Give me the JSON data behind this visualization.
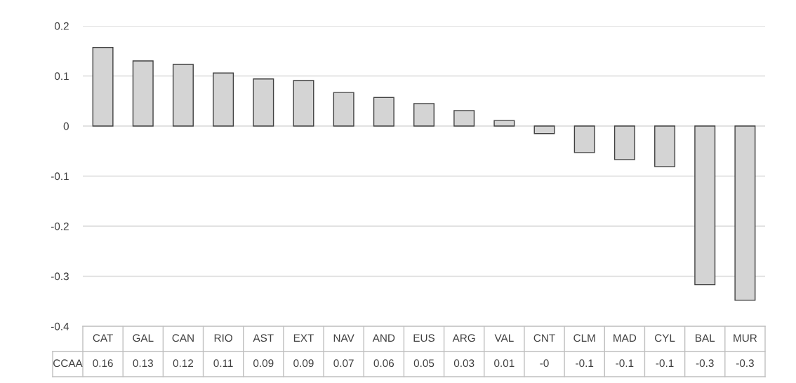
{
  "chart_data": {
    "type": "bar",
    "categories": [
      "CAT",
      "GAL",
      "CAN",
      "RIO",
      "AST",
      "EXT",
      "NAV",
      "AND",
      "EUS",
      "ARG",
      "VAL",
      "CNT",
      "CLM",
      "MAD",
      "CYL",
      "BAL",
      "MUR"
    ],
    "series": [
      {
        "name": "CCAA",
        "color": "#d4d4d4",
        "values": [
          0.157,
          0.13,
          0.123,
          0.106,
          0.094,
          0.091,
          0.067,
          0.057,
          0.045,
          0.031,
          0.011,
          -0.015,
          -0.053,
          -0.067,
          -0.081,
          -0.317,
          -0.348
        ],
        "value_labels": [
          "0.16",
          "0.13",
          "0.12",
          "0.11",
          "0.09",
          "0.09",
          "0.07",
          "0.06",
          "0.05",
          "0.03",
          "0.01",
          "-0",
          "-0.1",
          "-0.1",
          "-0.1",
          "-0.3",
          "-0.3"
        ]
      }
    ],
    "ylim": [
      -0.4,
      0.2
    ],
    "yticks": [
      {
        "value": -0.4,
        "label": "-0.4"
      },
      {
        "value": -0.3,
        "label": "-0.3"
      },
      {
        "value": -0.2,
        "label": "-0.2"
      },
      {
        "value": -0.1,
        "label": "-0.1"
      },
      0,
      0.1,
      0.2
    ],
    "grid": "y"
  }
}
